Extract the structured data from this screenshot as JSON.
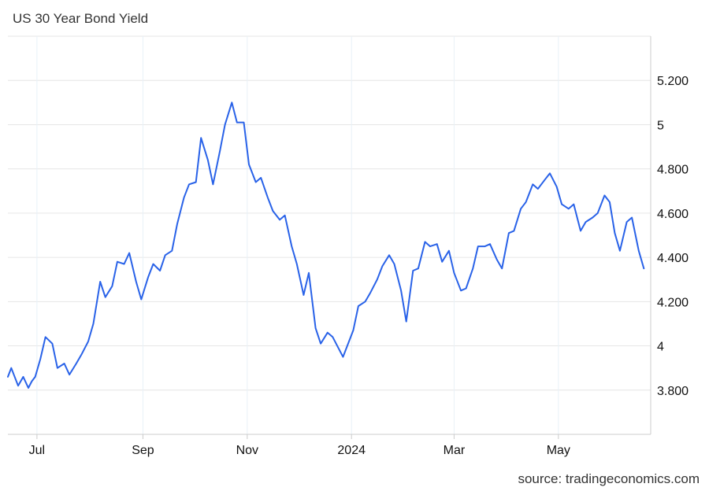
{
  "header": {
    "title": "US 30 Year Bond Yield"
  },
  "footer": {
    "source": "source: tradingeconomics.com"
  },
  "colors": {
    "line": "#2962e8",
    "grid": "#e6e6e6",
    "vgrid": "#e8f1f8",
    "axis": "#cccccc"
  },
  "chart_data": {
    "type": "line",
    "title": "US 30 Year Bond Yield",
    "xlabel": "",
    "ylabel": "",
    "ylim": [
      3.6,
      5.4
    ],
    "grid": true,
    "y_axis_side": "right",
    "y_ticks": [
      {
        "value": 3.8,
        "label": "3.800"
      },
      {
        "value": 4.0,
        "label": "4"
      },
      {
        "value": 4.2,
        "label": "4.200"
      },
      {
        "value": 4.4,
        "label": "4.400"
      },
      {
        "value": 4.6,
        "label": "4.600"
      },
      {
        "value": 4.8,
        "label": "4.800"
      },
      {
        "value": 5.0,
        "label": "5"
      },
      {
        "value": 5.2,
        "label": "5.200"
      }
    ],
    "x_ticks": [
      {
        "label": "Jul",
        "date": "2023-07-01"
      },
      {
        "label": "Sep",
        "date": "2023-09-01"
      },
      {
        "label": "Nov",
        "date": "2023-11-01"
      },
      {
        "label": "2024",
        "date": "2024-01-01"
      },
      {
        "label": "Mar",
        "date": "2024-03-01"
      },
      {
        "label": "May",
        "date": "2024-05-01"
      }
    ],
    "xlim": [
      "2023-06-14",
      "2024-06-24"
    ],
    "series": [
      {
        "name": "",
        "x": [
          "2023-06-14",
          "2023-06-16",
          "2023-06-20",
          "2023-06-23",
          "2023-06-26",
          "2023-06-28",
          "2023-06-30",
          "2023-07-03",
          "2023-07-06",
          "2023-07-10",
          "2023-07-13",
          "2023-07-17",
          "2023-07-20",
          "2023-07-24",
          "2023-07-27",
          "2023-07-31",
          "2023-08-03",
          "2023-08-07",
          "2023-08-10",
          "2023-08-14",
          "2023-08-17",
          "2023-08-21",
          "2023-08-24",
          "2023-08-28",
          "2023-08-31",
          "2023-09-04",
          "2023-09-07",
          "2023-09-11",
          "2023-09-14",
          "2023-09-18",
          "2023-09-21",
          "2023-09-25",
          "2023-09-28",
          "2023-10-02",
          "2023-10-05",
          "2023-10-09",
          "2023-10-12",
          "2023-10-16",
          "2023-10-19",
          "2023-10-23",
          "2023-10-26",
          "2023-10-30",
          "2023-11-02",
          "2023-11-06",
          "2023-11-09",
          "2023-11-13",
          "2023-11-16",
          "2023-11-20",
          "2023-11-23",
          "2023-11-27",
          "2023-11-30",
          "2023-12-04",
          "2023-12-07",
          "2023-12-11",
          "2023-12-14",
          "2023-12-18",
          "2023-12-21",
          "2023-12-27",
          "2024-01-02",
          "2024-01-05",
          "2024-01-09",
          "2024-01-12",
          "2024-01-16",
          "2024-01-19",
          "2024-01-23",
          "2024-01-26",
          "2024-01-30",
          "2024-02-02",
          "2024-02-06",
          "2024-02-09",
          "2024-02-13",
          "2024-02-16",
          "2024-02-20",
          "2024-02-23",
          "2024-02-27",
          "2024-03-01",
          "2024-03-05",
          "2024-03-08",
          "2024-03-12",
          "2024-03-15",
          "2024-03-19",
          "2024-03-22",
          "2024-03-26",
          "2024-03-29",
          "2024-04-02",
          "2024-04-05",
          "2024-04-09",
          "2024-04-12",
          "2024-04-16",
          "2024-04-19",
          "2024-04-23",
          "2024-04-26",
          "2024-04-30",
          "2024-05-03",
          "2024-05-07",
          "2024-05-10",
          "2024-05-14",
          "2024-05-17",
          "2024-05-21",
          "2024-05-24",
          "2024-05-28",
          "2024-05-31",
          "2024-06-03",
          "2024-06-06",
          "2024-06-10",
          "2024-06-13",
          "2024-06-17",
          "2024-06-20"
        ],
        "values": [
          3.86,
          3.9,
          3.82,
          3.86,
          3.81,
          3.84,
          3.86,
          3.94,
          4.04,
          4.01,
          3.9,
          3.92,
          3.87,
          3.92,
          3.96,
          4.02,
          4.1,
          4.29,
          4.22,
          4.27,
          4.38,
          4.37,
          4.42,
          4.29,
          4.21,
          4.31,
          4.37,
          4.34,
          4.41,
          4.43,
          4.55,
          4.67,
          4.73,
          4.74,
          4.94,
          4.84,
          4.73,
          4.88,
          5.0,
          5.1,
          5.01,
          5.01,
          4.82,
          4.74,
          4.76,
          4.67,
          4.61,
          4.57,
          4.59,
          4.45,
          4.37,
          4.23,
          4.33,
          4.08,
          4.01,
          4.06,
          4.04,
          3.95,
          4.07,
          4.18,
          4.2,
          4.24,
          4.3,
          4.36,
          4.41,
          4.37,
          4.25,
          4.11,
          4.34,
          4.35,
          4.47,
          4.45,
          4.46,
          4.38,
          4.43,
          4.33,
          4.25,
          4.26,
          4.35,
          4.45,
          4.45,
          4.46,
          4.39,
          4.35,
          4.51,
          4.52,
          4.62,
          4.65,
          4.73,
          4.71,
          4.75,
          4.78,
          4.72,
          4.64,
          4.62,
          4.64,
          4.52,
          4.56,
          4.58,
          4.6,
          4.68,
          4.65,
          4.51,
          4.43,
          4.56,
          4.58,
          4.43,
          4.35
        ]
      }
    ]
  }
}
